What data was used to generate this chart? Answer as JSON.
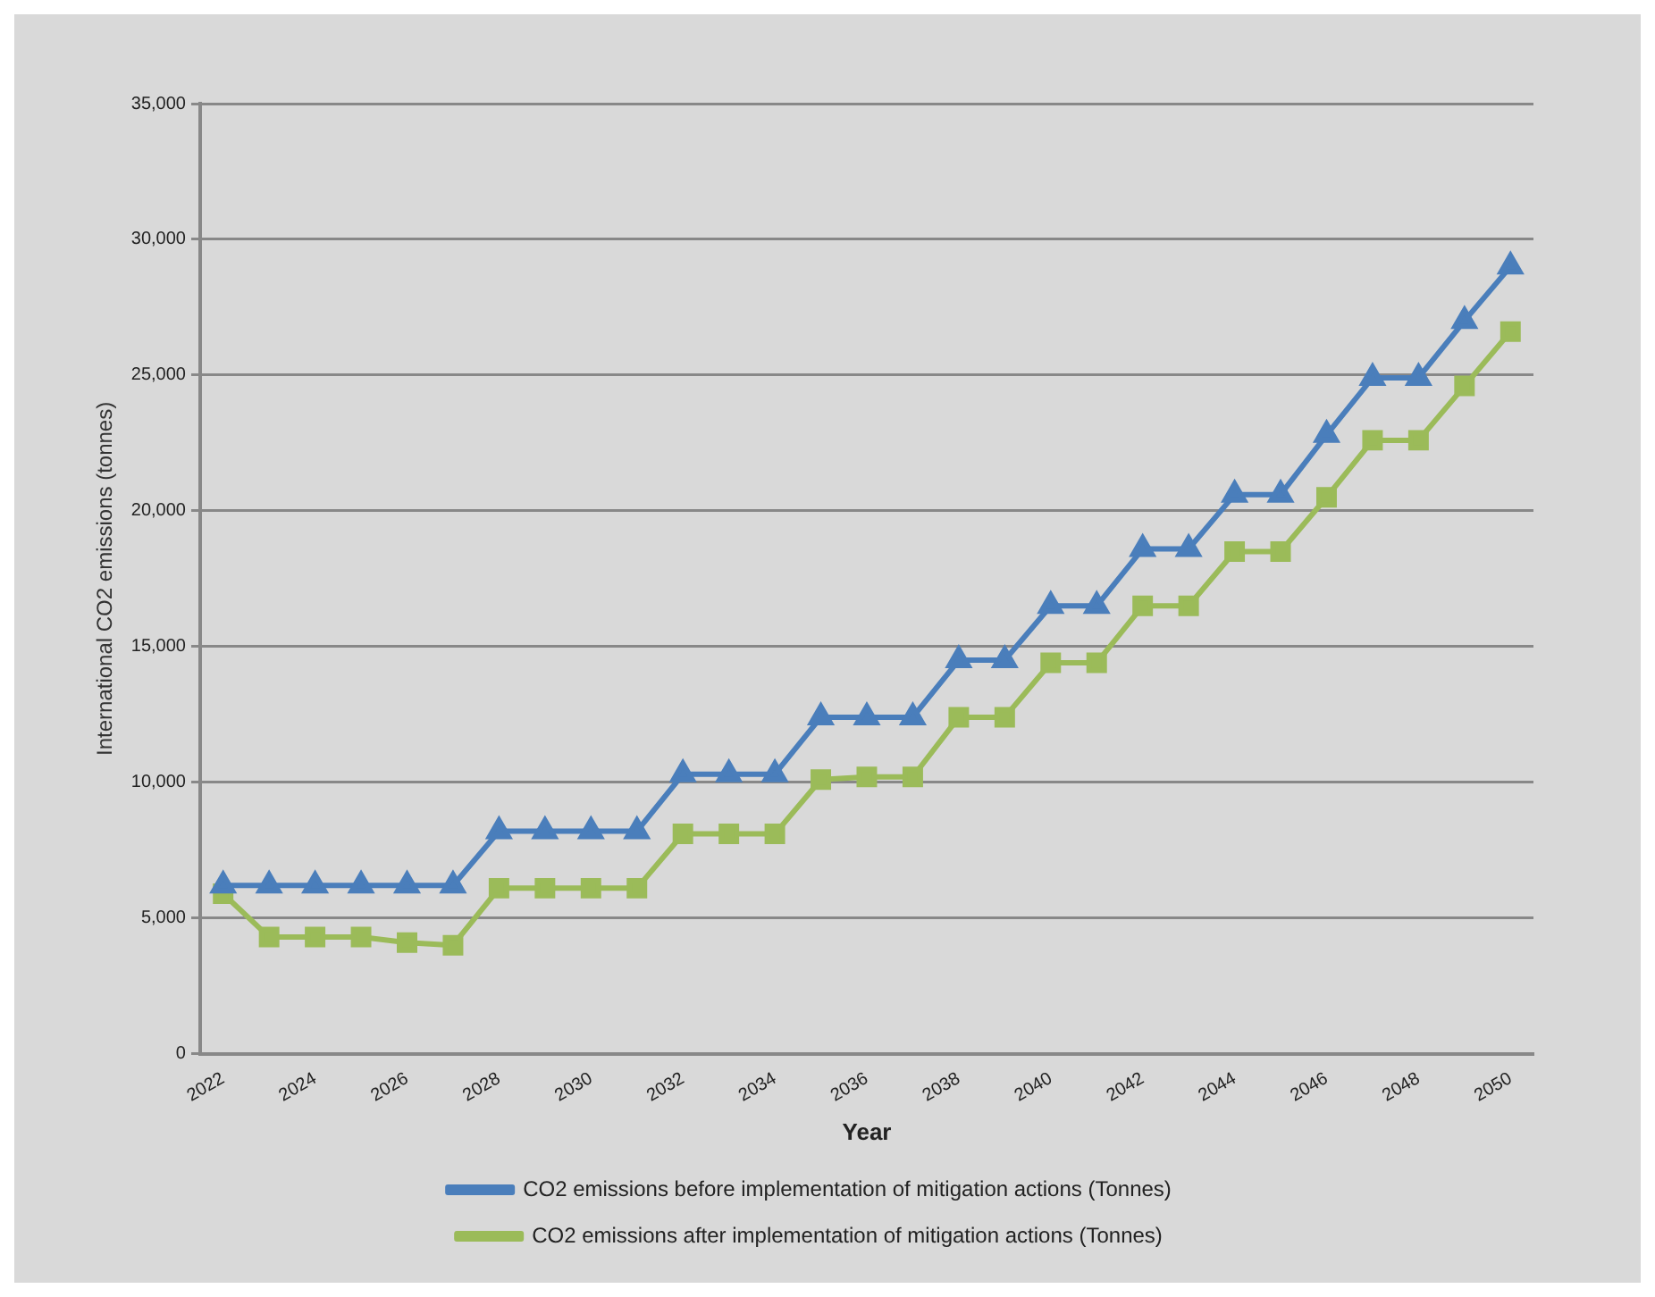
{
  "chart_data": {
    "type": "line",
    "xlabel": "Year",
    "ylabel": "International CO2 emissions (tonnes)",
    "categories": [
      "2022",
      null,
      "2024",
      null,
      "2026",
      null,
      "2028",
      null,
      "2030",
      null,
      "2032",
      null,
      "2034",
      null,
      "2036",
      null,
      "2038",
      null,
      "2040",
      null,
      "2042",
      null,
      "2044",
      null,
      "2046",
      null,
      "2048",
      null,
      "2050"
    ],
    "series": [
      {
        "name": "CO2 emissions before implementation of mitigation actions (Tonnes)",
        "color": "#4a7ebb",
        "marker": "triangle",
        "values": [
          6200,
          6200,
          6200,
          6200,
          6200,
          6200,
          8200,
          8200,
          8200,
          8200,
          10300,
          10300,
          10300,
          12400,
          12400,
          12400,
          14500,
          14500,
          16500,
          16500,
          18600,
          18600,
          20600,
          20600,
          22800,
          24900,
          24900,
          27000,
          29000
        ]
      },
      {
        "name": "CO2 emissions after implementation of mitigation actions (Tonnes)",
        "color": "#9bbb59",
        "marker": "square",
        "values": [
          5900,
          4300,
          4300,
          4300,
          4100,
          4000,
          6100,
          6100,
          6100,
          6100,
          8100,
          8100,
          8100,
          10100,
          10200,
          10200,
          12400,
          12400,
          14400,
          14400,
          16500,
          16500,
          18500,
          18500,
          20500,
          22600,
          22600,
          24600,
          26600
        ]
      }
    ],
    "ylim": [
      0,
      35000
    ],
    "yticks": [
      0,
      {
        "value": 5000,
        "label": "5,000"
      },
      {
        "value": 10000,
        "label": "10,000"
      },
      {
        "value": 15000,
        "label": "15,000"
      },
      {
        "value": 20000,
        "label": "20,000"
      },
      {
        "value": 25000,
        "label": "25,000"
      },
      {
        "value": 30000,
        "label": "30,000"
      },
      {
        "value": 35000,
        "label": "35,000"
      }
    ],
    "grid": "y",
    "legend": "bottom",
    "line_style": "solid"
  }
}
